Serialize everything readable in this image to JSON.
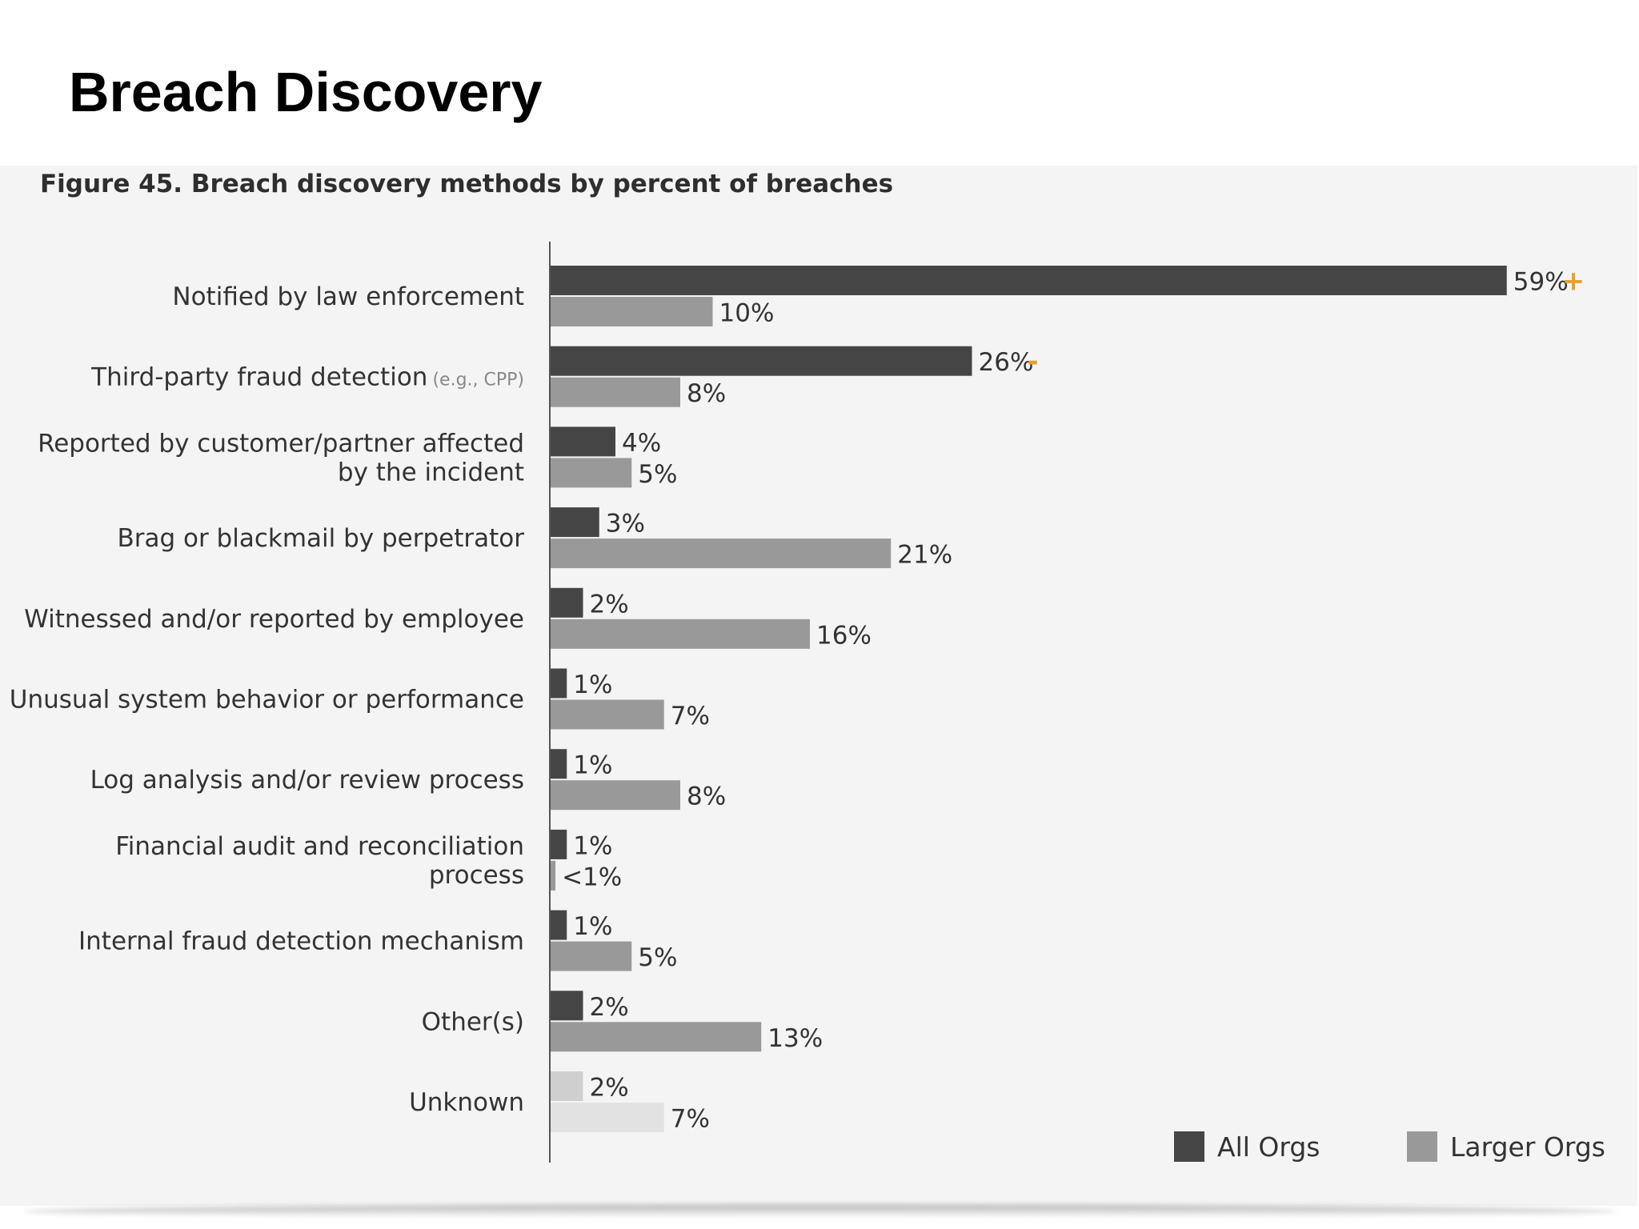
{
  "page": {
    "title": "Breach Discovery"
  },
  "chart_data": {
    "type": "bar",
    "orientation": "horizontal",
    "title": "Figure 45. Breach discovery methods by percent of breaches",
    "xlim": [
      0,
      65
    ],
    "grid": false,
    "legend_position": "bottom-right",
    "categories": [
      {
        "label": "Notified by law enforcement",
        "note": ""
      },
      {
        "label": "Third-party fraud detection",
        "note": "(e.g., CPP)"
      },
      {
        "label": "Reported by customer/partner affected by the incident",
        "note": ""
      },
      {
        "label": "Brag or blackmail by perpetrator",
        "note": ""
      },
      {
        "label": "Witnessed and/or reported by employee",
        "note": ""
      },
      {
        "label": "Unusual system behavior or performance",
        "note": ""
      },
      {
        "label": "Log analysis and/or review process",
        "note": ""
      },
      {
        "label": "Financial audit and reconciliation process",
        "note": ""
      },
      {
        "label": "Internal fraud detection mechanism",
        "note": ""
      },
      {
        "label": "Other(s)",
        "note": ""
      },
      {
        "label": "Unknown",
        "note": ""
      }
    ],
    "series": [
      {
        "name": "All Orgs",
        "color": "#454545",
        "values": [
          59,
          26,
          4,
          3,
          2,
          1,
          1,
          1,
          1,
          2,
          2
        ],
        "labels": [
          "59%",
          "26%",
          "4%",
          "3%",
          "2%",
          "1%",
          "1%",
          "1%",
          "1%",
          "2%",
          "2%"
        ],
        "markers": [
          "+",
          "-",
          "",
          "",
          "",
          "",
          "",
          "",
          "",
          "",
          ""
        ]
      },
      {
        "name": "Larger Orgs",
        "color": "#999999",
        "values": [
          10,
          8,
          5,
          21,
          16,
          7,
          8,
          0.3,
          5,
          13,
          7
        ],
        "labels": [
          "10%",
          "8%",
          "5%",
          "21%",
          "16%",
          "7%",
          "8%",
          "<1%",
          "5%",
          "13%",
          "7%"
        ]
      }
    ],
    "unknown_colors": [
      "#cfcfcf",
      "#e2e2e2"
    ],
    "marker_color": "#e8a02c"
  }
}
